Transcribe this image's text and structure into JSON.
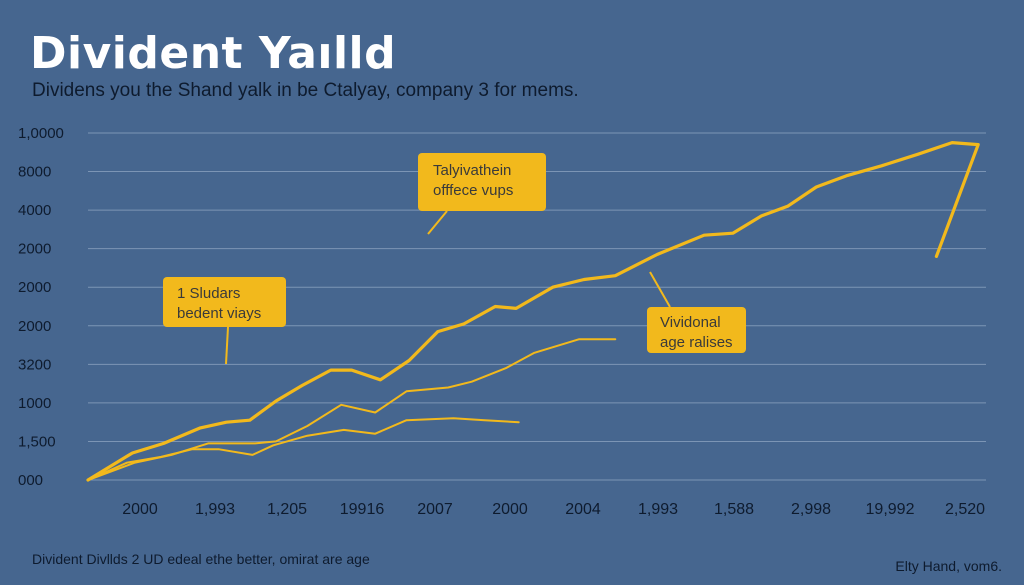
{
  "chart_data": {
    "type": "line",
    "title": "Divident Yaılld",
    "subtitle": "Dividens you the Shand yalk in be Ctalyay, company 3 for mems.",
    "y_tick_labels": [
      "000",
      "1,500",
      "1000",
      "3200",
      "2000",
      "2000",
      "2000",
      "4000",
      "8000",
      "1,0000"
    ],
    "x_tick_labels": [
      "2000",
      "1,993",
      "1,205",
      "19916",
      "2007",
      "2000",
      "2004",
      "1,993",
      "1,588",
      "2,998",
      "19,992",
      "2,520"
    ],
    "grid": true,
    "ylim": [
      0,
      9
    ],
    "series": [
      {
        "name": "main",
        "color": "#f2b91c",
        "points": [
          [
            0,
            0
          ],
          [
            0.85,
            0.7
          ],
          [
            1.45,
            0.95
          ],
          [
            2.15,
            1.35
          ],
          [
            2.65,
            1.5
          ],
          [
            3.1,
            1.55
          ],
          [
            3.6,
            2.05
          ],
          [
            4.1,
            2.45
          ],
          [
            4.65,
            2.85
          ],
          [
            5.05,
            2.85
          ],
          [
            5.6,
            2.6
          ],
          [
            6.15,
            3.1
          ],
          [
            6.7,
            3.85
          ],
          [
            7.2,
            4.05
          ],
          [
            7.8,
            4.5
          ],
          [
            8.2,
            4.45
          ],
          [
            8.9,
            5.0
          ],
          [
            9.5,
            5.2
          ],
          [
            10.1,
            5.3
          ],
          [
            10.9,
            5.85
          ],
          [
            11.8,
            6.35
          ],
          [
            12.35,
            6.4
          ],
          [
            12.9,
            6.85
          ],
          [
            13.4,
            7.1
          ],
          [
            13.95,
            7.6
          ],
          [
            14.55,
            7.9
          ],
          [
            15.2,
            8.15
          ],
          [
            15.9,
            8.45
          ],
          [
            16.55,
            8.75
          ],
          [
            17.05,
            8.7
          ],
          [
            16.25,
            5.8
          ]
        ]
      },
      {
        "name": "secondary",
        "color": "#f2b91c",
        "points": [
          [
            0,
            0
          ],
          [
            0.9,
            0.45
          ],
          [
            1.6,
            0.65
          ],
          [
            2.3,
            0.95
          ],
          [
            2.75,
            0.95
          ],
          [
            3.2,
            0.95
          ],
          [
            3.6,
            1.0
          ],
          [
            4.2,
            1.4
          ],
          [
            4.85,
            1.95
          ],
          [
            5.5,
            1.75
          ],
          [
            6.1,
            2.3
          ],
          [
            6.9,
            2.4
          ],
          [
            7.35,
            2.55
          ],
          [
            8.0,
            2.9
          ],
          [
            8.55,
            3.3
          ],
          [
            9.4,
            3.65
          ],
          [
            10.1,
            3.65
          ]
        ]
      },
      {
        "name": "tertiary",
        "color": "#f2b91c",
        "points": [
          [
            0,
            0
          ],
          [
            0.75,
            0.45
          ],
          [
            1.4,
            0.6
          ],
          [
            2.0,
            0.8
          ],
          [
            2.5,
            0.8
          ],
          [
            3.15,
            0.65
          ],
          [
            3.55,
            0.9
          ],
          [
            4.2,
            1.15
          ],
          [
            4.9,
            1.3
          ],
          [
            5.5,
            1.2
          ],
          [
            6.1,
            1.55
          ],
          [
            7.0,
            1.6
          ],
          [
            7.6,
            1.55
          ],
          [
            8.25,
            1.5
          ]
        ]
      }
    ],
    "annotations": [
      {
        "lines": [
          "Talyivathein",
          "offfece vups"
        ]
      },
      {
        "lines": [
          "1 Sludars",
          "bedent viays"
        ]
      },
      {
        "lines": [
          "Vividonal",
          "age ralises"
        ]
      }
    ]
  },
  "footer": {
    "left": "Divident Divllds 2 UD edeal ethe better, omirat are age",
    "right": "Elty Hand, vom6."
  }
}
